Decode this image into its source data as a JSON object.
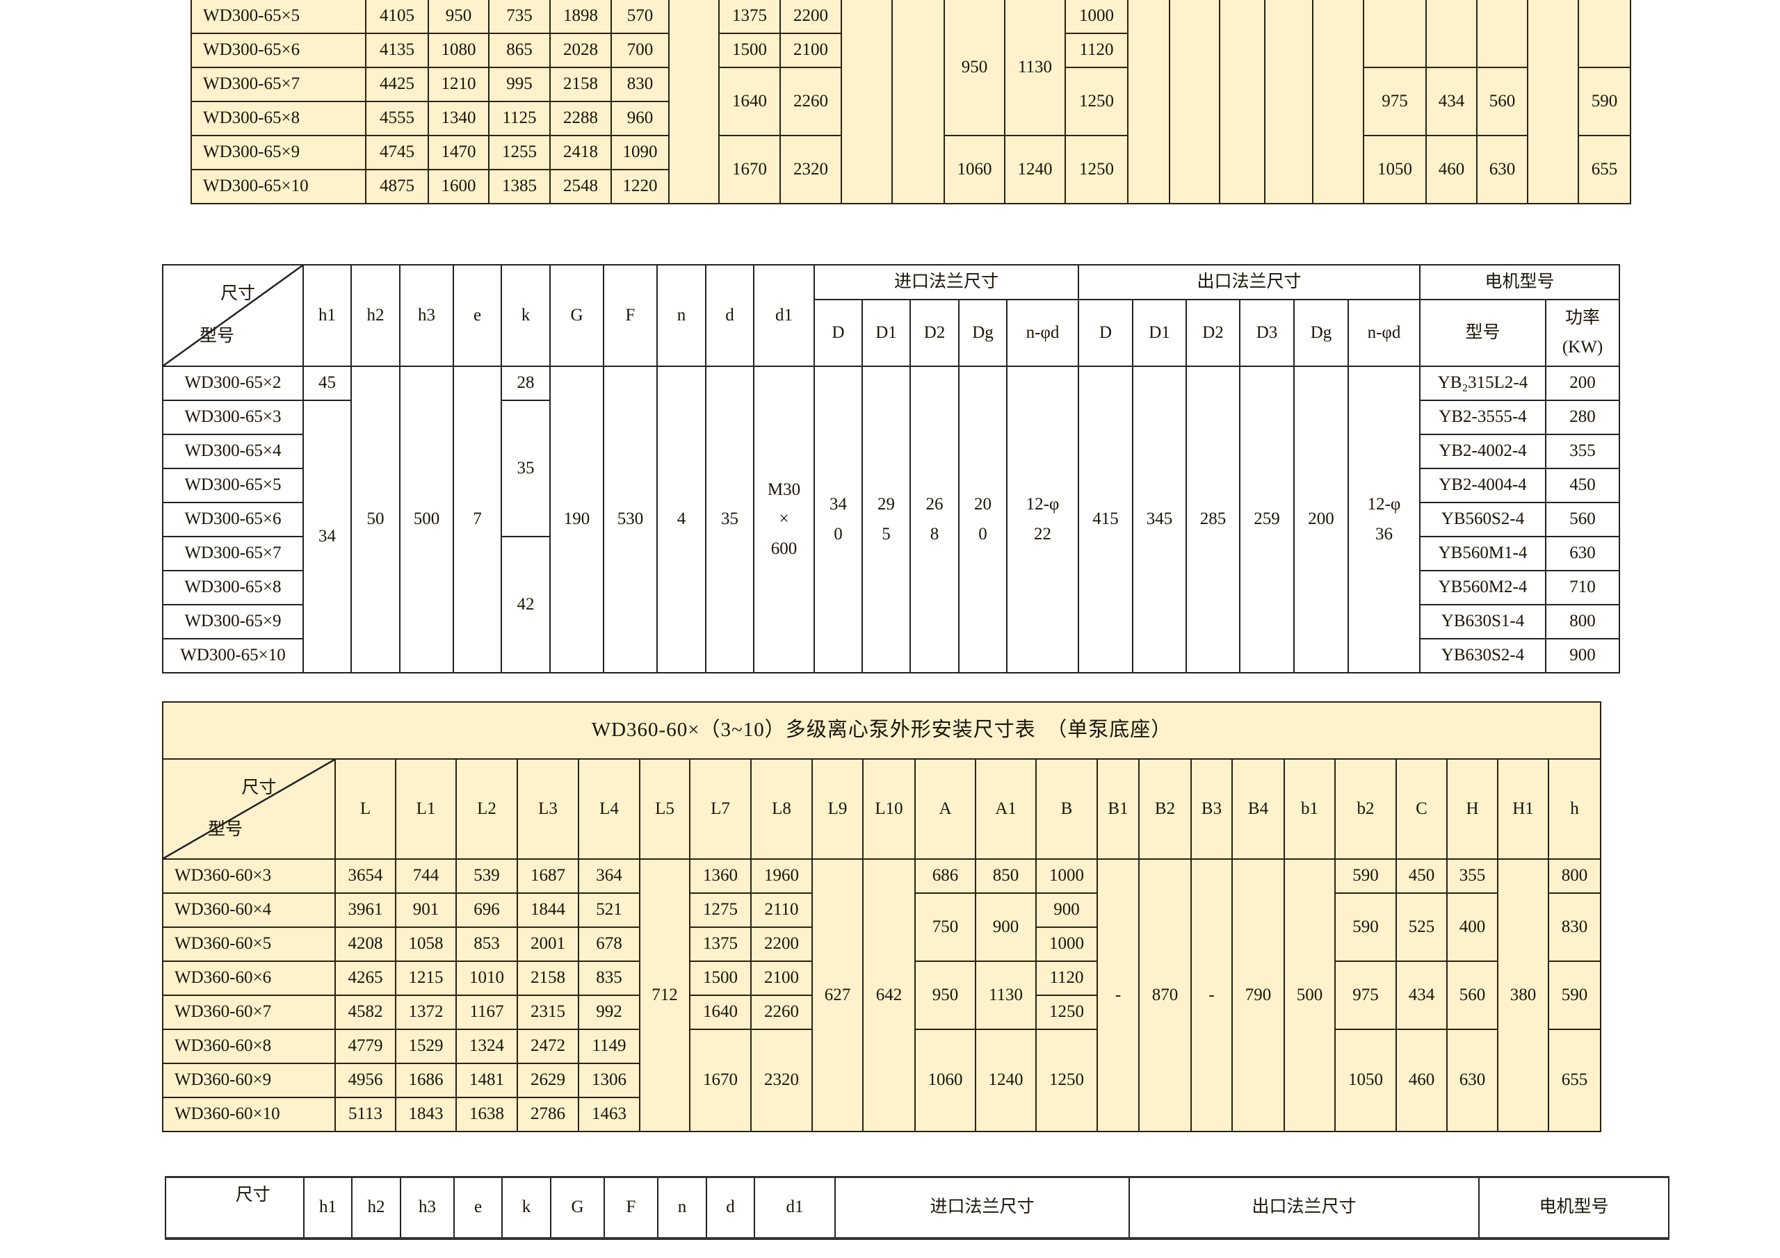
{
  "table_top": {
    "models": [
      "WD300-65×5",
      "WD300-65×6",
      "WD300-65×7",
      "WD300-65×8",
      "WD300-65×9",
      "WD300-65×10"
    ],
    "columns": [
      [
        {
          "v": "4105"
        },
        {
          "v": "4135"
        },
        {
          "v": "4425"
        },
        {
          "v": "4555"
        },
        {
          "v": "4745"
        },
        {
          "v": "4875"
        }
      ],
      [
        {
          "v": "950"
        },
        {
          "v": "1080"
        },
        {
          "v": "1210"
        },
        {
          "v": "1340"
        },
        {
          "v": "1470"
        },
        {
          "v": "1600"
        }
      ],
      [
        {
          "v": "735"
        },
        {
          "v": "865"
        },
        {
          "v": "995"
        },
        {
          "v": "1125"
        },
        {
          "v": "1255"
        },
        {
          "v": "1385"
        }
      ],
      [
        {
          "v": "1898"
        },
        {
          "v": "2028"
        },
        {
          "v": "2158"
        },
        {
          "v": "2288"
        },
        {
          "v": "2418"
        },
        {
          "v": "2548"
        }
      ],
      [
        {
          "v": "570"
        },
        {
          "v": "700"
        },
        {
          "v": "830"
        },
        {
          "v": "960"
        },
        {
          "v": "1090"
        },
        {
          "v": "1220"
        }
      ],
      [
        {
          "v": "",
          "n": 6
        }
      ],
      [
        {
          "v": "1375"
        },
        {
          "v": "1500"
        },
        {
          "v": "1640",
          "n": 2
        },
        {
          "v": "1670",
          "n": 2
        }
      ],
      [
        {
          "v": "2200"
        },
        {
          "v": "2100"
        },
        {
          "v": "2260",
          "n": 2
        },
        {
          "v": "2320",
          "n": 2
        }
      ],
      [
        {
          "v": "",
          "n": 6
        }
      ],
      [
        {
          "v": "",
          "n": 6
        }
      ],
      [
        {
          "v": "950",
          "n": 4
        },
        {
          "v": "1060",
          "n": 2
        }
      ],
      [
        {
          "v": "1130",
          "n": 4
        },
        {
          "v": "1240",
          "n": 2
        }
      ],
      [
        {
          "v": "1000"
        },
        {
          "v": "1120"
        },
        {
          "v": "1250",
          "n": 2
        },
        {
          "v": "1250",
          "n": 2
        }
      ],
      [
        {
          "v": "",
          "n": 6
        }
      ],
      [
        {
          "v": "",
          "n": 6
        }
      ],
      [
        {
          "v": "",
          "n": 6
        }
      ],
      [
        {
          "v": "",
          "n": 6
        }
      ],
      [
        {
          "v": "",
          "n": 6
        }
      ],
      [
        {
          "v": "",
          "n": 2
        },
        {
          "v": "975",
          "n": 2
        },
        {
          "v": "1050",
          "n": 2
        }
      ],
      [
        {
          "v": "",
          "n": 2
        },
        {
          "v": "434",
          "n": 2
        },
        {
          "v": "460",
          "n": 2
        }
      ],
      [
        {
          "v": "",
          "n": 2
        },
        {
          "v": "560",
          "n": 2
        },
        {
          "v": "630",
          "n": 2
        }
      ],
      [
        {
          "v": "",
          "n": 6
        }
      ],
      [
        {
          "v": "",
          "n": 2
        },
        {
          "v": "590",
          "n": 2
        },
        {
          "v": "655",
          "n": 2
        }
      ]
    ]
  },
  "table_wd300_flange": {
    "corner_top": "尺寸",
    "corner_bottom": "型号",
    "headers": [
      "h1",
      "h2",
      "h3",
      "e",
      "k",
      "G",
      "F",
      "n",
      "d",
      "d1"
    ],
    "inlet_group": "进口法兰尺寸",
    "inlet_headers": [
      "D",
      "D1",
      "D2",
      "Dg",
      "n-φd"
    ],
    "outlet_group": "出口法兰尺寸",
    "outlet_headers": [
      "D",
      "D1",
      "D2",
      "D3",
      "Dg",
      "n-φd"
    ],
    "motor_group": "电机型号",
    "motor_model_header": "型号",
    "motor_power_header": "功率\n(KW)",
    "models": [
      "WD300-65×2",
      "WD300-65×3",
      "WD300-65×4",
      "WD300-65×5",
      "WD300-65×6",
      "WD300-65×7",
      "WD300-65×8",
      "WD300-65×9",
      "WD300-65×10"
    ],
    "columns": [
      [
        {
          "v": "45"
        },
        {
          "v": "34",
          "n": 8
        }
      ],
      [
        {
          "v": "50",
          "n": 9
        }
      ],
      [
        {
          "v": "500",
          "n": 9
        }
      ],
      [
        {
          "v": "7",
          "n": 9
        }
      ],
      [
        {
          "v": "28"
        },
        {
          "v": "35",
          "n": 4
        },
        {
          "v": "42",
          "n": 4
        }
      ],
      [
        {
          "v": "190",
          "n": 9
        }
      ],
      [
        {
          "v": "530",
          "n": 9
        }
      ],
      [
        {
          "v": "4",
          "n": 9
        }
      ],
      [
        {
          "v": "35",
          "n": 9
        }
      ],
      [
        {
          "v": "M30\n×\n600",
          "n": 9
        }
      ],
      [
        {
          "v": "34\n0",
          "n": 9
        }
      ],
      [
        {
          "v": "29\n5",
          "n": 9
        }
      ],
      [
        {
          "v": "26\n8",
          "n": 9
        }
      ],
      [
        {
          "v": "20\n0",
          "n": 9
        }
      ],
      [
        {
          "v": "12-φ\n22",
          "n": 9
        }
      ],
      [
        {
          "v": "415",
          "n": 9
        }
      ],
      [
        {
          "v": "345",
          "n": 9
        }
      ],
      [
        {
          "v": "285",
          "n": 9
        }
      ],
      [
        {
          "v": "259",
          "n": 9
        }
      ],
      [
        {
          "v": "200",
          "n": 9
        }
      ],
      [
        {
          "v": "12-φ\n36",
          "n": 9
        }
      ],
      [
        {
          "v": "YB₂315L2-4"
        },
        {
          "v": "YB2-3555-4"
        },
        {
          "v": "YB2-4002-4"
        },
        {
          "v": "YB2-4004-4"
        },
        {
          "v": "YB560S2-4"
        },
        {
          "v": "YB560M1-4"
        },
        {
          "v": "YB560M2-4"
        },
        {
          "v": "YB630S1-4"
        },
        {
          "v": "YB630S2-4"
        }
      ],
      [
        {
          "v": "200"
        },
        {
          "v": "280"
        },
        {
          "v": "355"
        },
        {
          "v": "450"
        },
        {
          "v": "560"
        },
        {
          "v": "630"
        },
        {
          "v": "710"
        },
        {
          "v": "800"
        },
        {
          "v": "900"
        }
      ]
    ]
  },
  "table_wd360": {
    "title": "WD360-60×（3~10）多级离心泵外形安装尺寸表　（单泵底座）",
    "corner_top": "尺寸",
    "corner_bottom": "型号",
    "headers": [
      "L",
      "L1",
      "L2",
      "L3",
      "L4",
      "L5",
      "L7",
      "L8",
      "L9",
      "L10",
      "A",
      "A1",
      "B",
      "B1",
      "B2",
      "B3",
      "B4",
      "b1",
      "b2",
      "C",
      "H",
      "H1",
      "h"
    ],
    "models": [
      "WD360-60×3",
      "WD360-60×4",
      "WD360-60×5",
      "WD360-60×6",
      "WD360-60×7",
      "WD360-60×8",
      "WD360-60×9",
      "WD360-60×10"
    ],
    "columns": [
      [
        {
          "v": "3654"
        },
        {
          "v": "3961"
        },
        {
          "v": "4208"
        },
        {
          "v": "4265"
        },
        {
          "v": "4582"
        },
        {
          "v": "4779"
        },
        {
          "v": "4956"
        },
        {
          "v": "5113"
        }
      ],
      [
        {
          "v": "744"
        },
        {
          "v": "901"
        },
        {
          "v": "1058"
        },
        {
          "v": "1215"
        },
        {
          "v": "1372"
        },
        {
          "v": "1529"
        },
        {
          "v": "1686"
        },
        {
          "v": "1843"
        }
      ],
      [
        {
          "v": "539"
        },
        {
          "v": "696"
        },
        {
          "v": "853"
        },
        {
          "v": "1010"
        },
        {
          "v": "1167"
        },
        {
          "v": "1324"
        },
        {
          "v": "1481"
        },
        {
          "v": "1638"
        }
      ],
      [
        {
          "v": "1687"
        },
        {
          "v": "1844"
        },
        {
          "v": "2001"
        },
        {
          "v": "2158"
        },
        {
          "v": "2315"
        },
        {
          "v": "2472"
        },
        {
          "v": "2629"
        },
        {
          "v": "2786"
        }
      ],
      [
        {
          "v": "364"
        },
        {
          "v": "521"
        },
        {
          "v": "678"
        },
        {
          "v": "835"
        },
        {
          "v": "992"
        },
        {
          "v": "1149"
        },
        {
          "v": "1306"
        },
        {
          "v": "1463"
        }
      ],
      [
        {
          "v": "712",
          "n": 8
        }
      ],
      [
        {
          "v": "1360"
        },
        {
          "v": "1275"
        },
        {
          "v": "1375"
        },
        {
          "v": "1500"
        },
        {
          "v": "1640"
        },
        {
          "v": "1670",
          "n": 3
        }
      ],
      [
        {
          "v": "1960"
        },
        {
          "v": "2110"
        },
        {
          "v": "2200"
        },
        {
          "v": "2100"
        },
        {
          "v": "2260"
        },
        {
          "v": "2320",
          "n": 3
        }
      ],
      [
        {
          "v": "627",
          "n": 8
        }
      ],
      [
        {
          "v": "642",
          "n": 8
        }
      ],
      [
        {
          "v": "686"
        },
        {
          "v": "750",
          "n": 2
        },
        {
          "v": "950",
          "n": 2
        },
        {
          "v": "1060",
          "n": 3
        }
      ],
      [
        {
          "v": "850"
        },
        {
          "v": "900",
          "n": 2
        },
        {
          "v": "1130",
          "n": 2
        },
        {
          "v": "1240",
          "n": 3
        }
      ],
      [
        {
          "v": "1000"
        },
        {
          "v": "900"
        },
        {
          "v": "1000"
        },
        {
          "v": "1120"
        },
        {
          "v": "1250"
        },
        {
          "v": "1250",
          "n": 3
        }
      ],
      [
        {
          "v": "-",
          "n": 8
        }
      ],
      [
        {
          "v": "870",
          "n": 8
        }
      ],
      [
        {
          "v": "-",
          "n": 8
        }
      ],
      [
        {
          "v": "790",
          "n": 8
        }
      ],
      [
        {
          "v": "500",
          "n": 8
        }
      ],
      [
        {
          "v": "590"
        },
        {
          "v": "590",
          "n": 2
        },
        {
          "v": "975",
          "n": 2
        },
        {
          "v": "1050",
          "n": 3
        }
      ],
      [
        {
          "v": "450"
        },
        {
          "v": "525",
          "n": 2
        },
        {
          "v": "434",
          "n": 2
        },
        {
          "v": "460",
          "n": 3
        }
      ],
      [
        {
          "v": "355"
        },
        {
          "v": "400",
          "n": 2
        },
        {
          "v": "560",
          "n": 2
        },
        {
          "v": "630",
          "n": 3
        }
      ],
      [
        {
          "v": "380",
          "n": 8
        }
      ],
      [
        {
          "v": "800"
        },
        {
          "v": "830",
          "n": 2
        },
        {
          "v": "590",
          "n": 2
        },
        {
          "v": "655",
          "n": 3
        }
      ]
    ]
  },
  "table_bottom_header": {
    "corner_top": "尺寸",
    "headers": [
      "h1",
      "h2",
      "h3",
      "e",
      "k",
      "G",
      "F",
      "n",
      "d",
      "d1"
    ],
    "inlet_group": "进口法兰尺寸",
    "outlet_group": "出口法兰尺寸",
    "motor_group": "电机型号"
  },
  "colors": {
    "table_fill": "#fdf2cc",
    "border": "#2a2212"
  }
}
